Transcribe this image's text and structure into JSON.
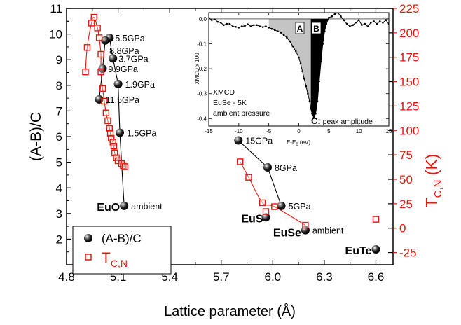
{
  "chart_data": {
    "type": "scatter",
    "xlabel": "Lattice parameter (Å)",
    "ylabel_left": "(A-B)/C",
    "ylabel_right": "T",
    "ylabel_right_sub": "C,N",
    "ylabel_right_unit": "(K)",
    "xlim": [
      4.8,
      6.7
    ],
    "ylim_left": [
      1,
      11
    ],
    "ylim_right": [
      -37.5,
      225
    ],
    "xticks": [
      "4.8",
      "5.1",
      "5.4",
      "5.7",
      "6.0",
      "6.3",
      "6.6"
    ],
    "xtick_values": [
      4.8,
      5.1,
      5.4,
      5.7,
      6.0,
      6.3,
      6.6
    ],
    "yticks_left": [
      "2",
      "3",
      "4",
      "5",
      "6",
      "7",
      "8",
      "9",
      "10",
      "11"
    ],
    "ytick_left_values": [
      2,
      3,
      4,
      5,
      6,
      7,
      8,
      9,
      10,
      11
    ],
    "yticks_right": [
      "-25",
      "0",
      "25",
      "50",
      "75",
      "100",
      "125",
      "150",
      "175",
      "200",
      "225"
    ],
    "ytick_right_values": [
      -25,
      0,
      25,
      50,
      75,
      100,
      125,
      150,
      175,
      200,
      225
    ],
    "series": [
      {
        "name": "(A-B)/C",
        "axis": "left",
        "color": "#000000",
        "marker": "sphere",
        "groups": [
          {
            "points": [
              [
                5.135,
                3.3
              ],
              [
                5.11,
                6.15
              ],
              [
                5.1,
                8.05
              ],
              [
                5.07,
                9.05
              ],
              [
                5.05,
                9.85
              ],
              [
                5.025,
                9.75
              ],
              [
                5.01,
                8.65
              ],
              [
                4.99,
                7.45
              ]
            ]
          },
          {
            "points": [
              [
                6.05,
                3.3
              ],
              [
                5.97,
                4.8
              ],
              [
                5.8,
                5.85
              ]
            ]
          },
          {
            "points": [
              [
                5.96,
                2.85
              ]
            ]
          },
          {
            "points": [
              [
                6.19,
                2.35
              ]
            ]
          },
          {
            "points": [
              [
                6.6,
                1.6
              ]
            ]
          }
        ]
      },
      {
        "name": "T",
        "name_sub": "C,N",
        "axis": "right",
        "color": "#e8160c",
        "marker": "open-square",
        "groups": [
          {
            "points": [
              [
                4.91,
                160
              ],
              [
                4.92,
                185
              ],
              [
                4.945,
                210
              ],
              [
                4.96,
                216
              ],
              [
                4.98,
                205
              ],
              [
                4.99,
                195
              ],
              [
                5.0,
                178
              ],
              [
                5.0,
                160
              ],
              [
                5.01,
                143
              ],
              [
                5.02,
                130
              ],
              [
                5.03,
                118
              ],
              [
                5.04,
                110
              ],
              [
                5.05,
                102
              ],
              [
                5.055,
                97
              ],
              [
                5.06,
                92
              ],
              [
                5.07,
                88
              ],
              [
                5.075,
                84
              ],
              [
                5.08,
                77
              ],
              [
                5.09,
                72
              ],
              [
                5.1,
                69
              ],
              [
                5.12,
                66
              ],
              [
                5.13,
                64
              ],
              [
                5.14,
                63
              ]
            ]
          },
          {
            "points": [
              [
                5.81,
                68
              ],
              [
                5.86,
                52
              ],
              [
                5.94,
                26
              ],
              [
                6.01,
                22
              ],
              [
                6.19,
                3
              ]
            ]
          },
          {
            "points": [
              [
                5.96,
                17
              ]
            ]
          },
          {
            "points": [
              [
                6.6,
                9
              ]
            ]
          }
        ]
      }
    ],
    "point_labels": [
      "5.5GPa",
      "8.8GPa",
      "3.7GPa",
      "9.9GPa",
      "1.9GPa",
      "11.5GPa",
      "1.5GPa",
      "ambient",
      "15GPa",
      "8GPa",
      "5GPa",
      "ambient"
    ],
    "compound_labels": [
      "EuO",
      "EuS",
      "EuSe",
      "EuTe"
    ],
    "legend": {
      "placement": "bottom-left",
      "entries": [
        {
          "label": "(A-B)/C",
          "sub": ""
        },
        {
          "label": "T",
          "sub": "C,N"
        }
      ]
    },
    "inset": {
      "type": "line",
      "xlabel": "E-E",
      "xlabel_sub": "0",
      "xlabel_unit": "(eV)",
      "ylabel": "XMCD x 100",
      "xlim": [
        -15,
        15
      ],
      "ylim": [
        -0.43,
        0.025
      ],
      "xticks": [
        "-15",
        "-10",
        "-5",
        "0",
        "5",
        "10",
        "15"
      ],
      "xtick_values": [
        -15,
        -10,
        -5,
        0,
        5,
        10,
        15
      ],
      "yticks": [
        "0.0",
        "-0.1",
        "-0.2",
        "-0.3",
        "-0.4"
      ],
      "ytick_values": [
        0.0,
        -0.1,
        -0.2,
        -0.3,
        -0.4
      ],
      "region_labels": [
        "A",
        "B"
      ],
      "peak_label_bold": "C:",
      "peak_label_rest": "peak amplitude",
      "text_lines": [
        "XMCD",
        "EuSe - 5K",
        "ambient pressure"
      ],
      "x": [
        -15,
        -14.5,
        -14,
        -13.5,
        -13,
        -12.5,
        -12,
        -11.5,
        -11,
        -10.5,
        -10,
        -9.5,
        -9,
        -8.5,
        -8,
        -7.5,
        -7,
        -6.5,
        -6,
        -5.5,
        -5,
        -4.5,
        -4,
        -3.5,
        -3,
        -2.5,
        -2,
        -1.5,
        -1,
        -0.5,
        0,
        0.3,
        0.6,
        0.9,
        1.2,
        1.5,
        1.8,
        2.0,
        2.2,
        2.5,
        2.8,
        3.1,
        3.4,
        3.7,
        4.0,
        4.3,
        4.6,
        5.0,
        5.5,
        6.0,
        6.5,
        7.0,
        7.5,
        8.0,
        8.5,
        9.0,
        9.5,
        10.0,
        10.5,
        11.0,
        11.5,
        12.0,
        12.5,
        13.0,
        13.5,
        14.0,
        14.5,
        15.0
      ],
      "y": [
        0.005,
        -0.005,
        -0.002,
        -0.012,
        -0.015,
        -0.025,
        -0.02,
        -0.02,
        -0.03,
        -0.032,
        -0.035,
        -0.03,
        -0.028,
        -0.022,
        -0.03,
        -0.025,
        -0.025,
        -0.03,
        -0.033,
        -0.03,
        -0.035,
        -0.04,
        -0.045,
        -0.05,
        -0.055,
        -0.065,
        -0.075,
        -0.09,
        -0.11,
        -0.13,
        -0.155,
        -0.18,
        -0.21,
        -0.24,
        -0.27,
        -0.3,
        -0.33,
        -0.36,
        -0.38,
        -0.395,
        -0.38,
        -0.33,
        -0.25,
        -0.17,
        -0.1,
        -0.05,
        -0.02,
        0.005,
        0.01,
        0.02,
        0.025,
        0.01,
        -0.005,
        -0.02,
        -0.03,
        -0.025,
        -0.015,
        -0.005,
        -0.025,
        -0.02,
        -0.03,
        -0.015,
        -0.01,
        -0.02,
        -0.01,
        -0.015,
        -0.005,
        -0.02
      ],
      "region_A": [
        -5,
        2
      ],
      "region_B": [
        2,
        5
      ]
    }
  }
}
